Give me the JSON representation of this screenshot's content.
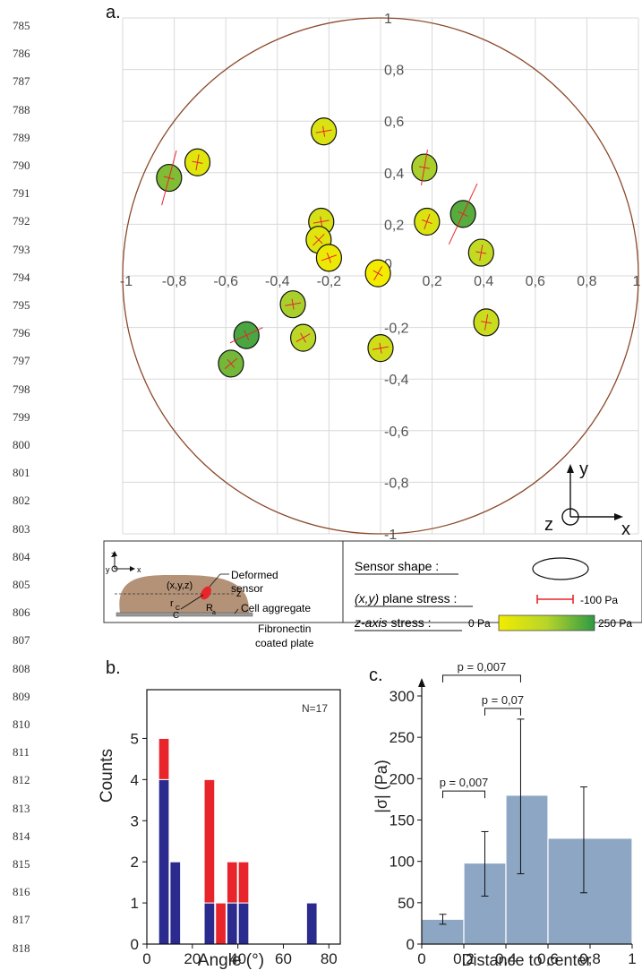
{
  "line_numbers": [
    "785",
    "786",
    "787",
    "788",
    "789",
    "790",
    "791",
    "792",
    "793",
    "794",
    "795",
    "796",
    "797",
    "798",
    "799",
    "800",
    "801",
    "802",
    "803",
    "804",
    "805",
    "806",
    "807",
    "808",
    "809",
    "810",
    "811",
    "812",
    "813",
    "814",
    "815",
    "816",
    "817",
    "818"
  ],
  "panel_a": {
    "letter": "a.",
    "x_ticks": [
      "-1",
      "-0,8",
      "-0,6",
      "-0,4",
      "-0,2",
      "0",
      "0,2",
      "0,4",
      "0,6",
      "0,8",
      "1"
    ],
    "y_ticks_pos": [
      "1",
      "0,8",
      "0,6",
      "0,4",
      "0,2"
    ],
    "y_ticks_neg": [
      "-0,2",
      "-0,4",
      "-0,6",
      "-0,8",
      "-1"
    ],
    "zero_label": "0",
    "axes_labels": {
      "x": "x",
      "y": "y",
      "z": "z"
    },
    "colors": {
      "circle": "#8b4a2b",
      "grid": "#d8d8d8",
      "stress_line": "#e8252a",
      "z_low": "#f2ec00",
      "z_high": "#2e9a45"
    },
    "sensors": [
      {
        "x": -0.82,
        "y": 0.38,
        "z": 0.7,
        "line_angle": 75,
        "line_len": 0.11
      },
      {
        "x": -0.71,
        "y": 0.44,
        "z": 0.15,
        "line_angle": 80,
        "line_len": 0.02
      },
      {
        "x": -0.22,
        "y": 0.56,
        "z": 0.2,
        "line_angle": 10,
        "line_len": 0.02
      },
      {
        "x": 0.17,
        "y": 0.42,
        "z": 0.55,
        "line_angle": 80,
        "line_len": 0.07
      },
      {
        "x": -0.23,
        "y": 0.21,
        "z": 0.25,
        "line_angle": 10,
        "line_len": 0.02
      },
      {
        "x": -0.24,
        "y": 0.14,
        "z": 0.15,
        "line_angle": 45,
        "line_len": 0.02
      },
      {
        "x": -0.2,
        "y": 0.07,
        "z": 0.05,
        "line_angle": 20,
        "line_len": 0.02
      },
      {
        "x": -0.01,
        "y": 0.01,
        "z": 0.0,
        "line_angle": 60,
        "line_len": 0.01
      },
      {
        "x": 0.18,
        "y": 0.21,
        "z": 0.2,
        "line_angle": 70,
        "line_len": 0.02
      },
      {
        "x": 0.32,
        "y": 0.24,
        "z": 0.85,
        "line_angle": 65,
        "line_len": 0.13
      },
      {
        "x": 0.39,
        "y": 0.09,
        "z": 0.4,
        "line_angle": 80,
        "line_len": 0.03
      },
      {
        "x": -0.34,
        "y": -0.11,
        "z": 0.55,
        "line_angle": 10,
        "line_len": 0.03
      },
      {
        "x": -0.52,
        "y": -0.23,
        "z": 0.9,
        "line_angle": 25,
        "line_len": 0.07
      },
      {
        "x": -0.58,
        "y": -0.34,
        "z": 0.75,
        "line_angle": 40,
        "line_len": 0.03
      },
      {
        "x": -0.3,
        "y": -0.24,
        "z": 0.45,
        "line_angle": 30,
        "line_len": 0.02
      },
      {
        "x": 0.0,
        "y": -0.28,
        "z": 0.3,
        "line_angle": 10,
        "line_len": 0.02
      },
      {
        "x": 0.41,
        "y": -0.18,
        "z": 0.35,
        "line_angle": 80,
        "line_len": 0.02
      }
    ]
  },
  "schematic": {
    "deformed_sensor": [
      "Deformed",
      "sensor"
    ],
    "position": "(x,y,z)",
    "z_label": "z",
    "rc": "r",
    "rc_sub": "C",
    "c_label": "C",
    "ra": "R",
    "ra_sub": "a",
    "aggregate": "Cell aggregate",
    "plate": [
      "Fibronectin",
      "coated plate"
    ],
    "axes": {
      "z": "z",
      "y": "y",
      "x": "x"
    }
  },
  "legend": {
    "sensor_shape": "Sensor shape :",
    "plane_stress_prefix": "(x,y)",
    "plane_stress_suffix": " plane stress :",
    "plane_stress_value": "-100 Pa",
    "z_stress_prefix": "z-axis",
    "z_stress_suffix": " stress :",
    "z_min": "0 Pa",
    "z_max": "250 Pa"
  },
  "panel_b": {
    "letter": "b.",
    "n_label": "N=17",
    "chart_data": {
      "type": "bar",
      "title": "",
      "xlabel": "Angle (°)",
      "ylabel": "Counts",
      "xlim": [
        0,
        85
      ],
      "ylim": [
        0,
        6
      ],
      "x_ticks": [
        "0",
        "20",
        "40",
        "60",
        "80"
      ],
      "y_ticks": [
        "0",
        "1",
        "2",
        "3",
        "4",
        "5"
      ],
      "bins": [
        [
          5,
          10
        ],
        [
          10,
          15
        ],
        [
          15,
          20
        ],
        [
          20,
          25
        ],
        [
          25,
          30
        ],
        [
          30,
          35
        ],
        [
          35,
          40
        ],
        [
          40,
          45
        ],
        [
          45,
          50
        ],
        [
          50,
          55
        ],
        [
          55,
          60
        ],
        [
          60,
          65
        ],
        [
          65,
          70
        ],
        [
          70,
          75
        ],
        [
          75,
          80
        ]
      ],
      "series": [
        {
          "color": "#2b2b8f",
          "values": [
            4,
            2,
            0,
            0,
            1,
            0,
            1,
            1,
            0,
            0,
            0,
            0,
            0,
            1,
            0
          ]
        },
        {
          "color": "#e8252a",
          "values": [
            1,
            0,
            0,
            0,
            3,
            1,
            1,
            1,
            0,
            0,
            0,
            0,
            0,
            0,
            0
          ]
        }
      ]
    }
  },
  "panel_c": {
    "letter": "c.",
    "chart_data": {
      "type": "bar",
      "title": "",
      "xlabel": "Distance to center",
      "ylabel": "|σ| (Pa)",
      "xlim": [
        0,
        1
      ],
      "ylim": [
        0,
        300
      ],
      "x_ticks": [
        "0",
        "0,2",
        "0,4",
        "0,6",
        "0,8",
        "1"
      ],
      "y_ticks": [
        "0",
        "50",
        "100",
        "150",
        "200",
        "250",
        "300"
      ],
      "bins": [
        [
          0.0,
          0.2
        ],
        [
          0.2,
          0.4
        ],
        [
          0.4,
          0.6
        ],
        [
          0.6,
          1.0
        ]
      ],
      "centers": [
        0.1,
        0.3,
        0.47,
        0.77
      ],
      "values": [
        30,
        98,
        180,
        128
      ],
      "error_low": [
        24,
        58,
        85,
        62
      ],
      "error_high": [
        36,
        136,
        272,
        190
      ],
      "color": "#8ca6c4",
      "significance": [
        {
          "label": "p = 0,007",
          "from": 0.1,
          "to": 0.3,
          "level": 185
        },
        {
          "label": "p = 0,07",
          "from": 0.3,
          "to": 0.47,
          "level": 285
        },
        {
          "label": "p = 0,007",
          "from": 0.1,
          "to": 0.47,
          "level": 325
        }
      ]
    }
  }
}
